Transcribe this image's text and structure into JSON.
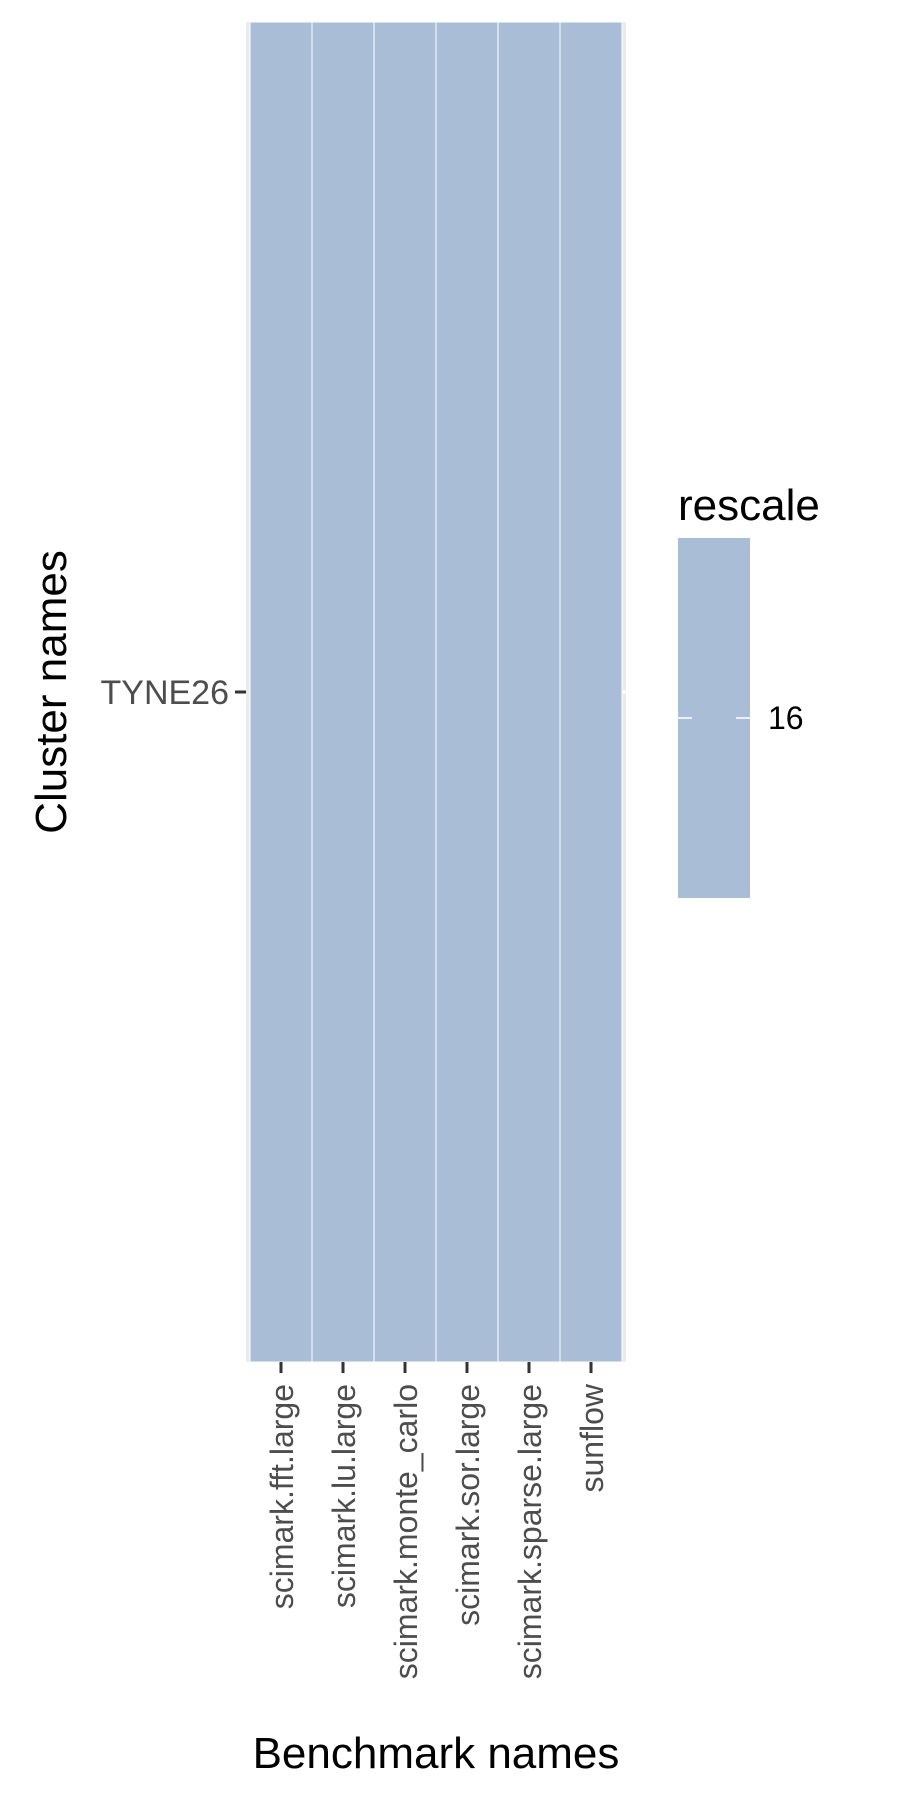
{
  "chart_data": {
    "type": "heatmap",
    "title": "",
    "xlabel": "Benchmark names",
    "ylabel": "Cluster names",
    "x_categories": [
      "scimark.fft.large",
      "scimark.lu.large",
      "scimark.monte_carlo",
      "scimark.sor.large",
      "scimark.sparse.large",
      "sunflow"
    ],
    "y_categories": [
      "TYNE26"
    ],
    "values": [
      [
        16,
        16,
        16,
        16,
        16,
        16
      ]
    ],
    "legend": {
      "title": "rescale",
      "placement": "right",
      "breaks": [
        16
      ],
      "break_labels": [
        "16"
      ]
    },
    "fill_color": "#a9bdd7",
    "panel_background": "#ebebeb",
    "tile_border_color": "#ffffff",
    "grid": true
  }
}
